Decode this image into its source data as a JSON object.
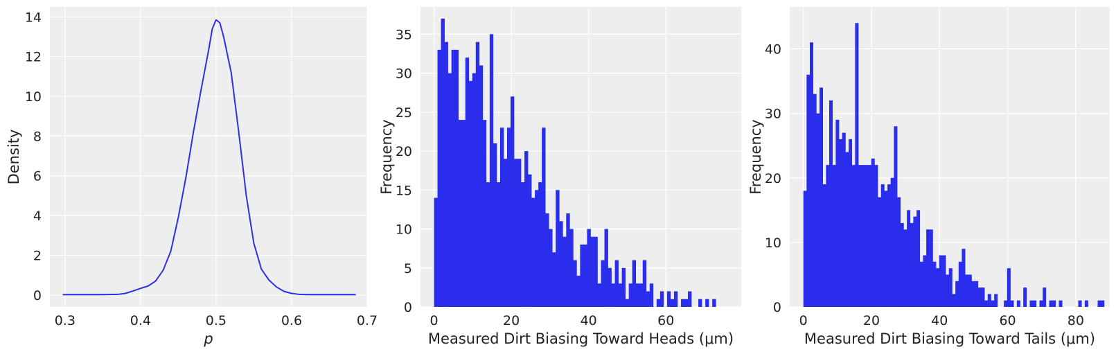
{
  "colors": {
    "plot_bg": "#eeeeee",
    "grid": "#ffffff",
    "series": "#2a2eec",
    "text": "#222222"
  },
  "chart_data": [
    {
      "type": "line",
      "xlabel": "p",
      "ylabel": "Density",
      "xlim": [
        0.28,
        0.7
      ],
      "ylim": [
        -0.6,
        14.5
      ],
      "xticks": [
        0.3,
        0.4,
        0.5,
        0.6,
        0.7
      ],
      "xtick_labels": [
        "0.3",
        "0.4",
        "0.5",
        "0.6",
        "0.7"
      ],
      "yticks": [
        0,
        2,
        4,
        6,
        8,
        10,
        12,
        14
      ],
      "ytick_labels": [
        "0",
        "2",
        "4",
        "6",
        "8",
        "10",
        "12",
        "14"
      ],
      "grid": true,
      "x": [
        0.297,
        0.32,
        0.35,
        0.37,
        0.38,
        0.39,
        0.4,
        0.41,
        0.42,
        0.43,
        0.44,
        0.45,
        0.46,
        0.47,
        0.48,
        0.49,
        0.495,
        0.5,
        0.505,
        0.51,
        0.52,
        0.53,
        0.54,
        0.55,
        0.56,
        0.57,
        0.58,
        0.59,
        0.6,
        0.61,
        0.62,
        0.65,
        0.685
      ],
      "y": [
        0.02,
        0.02,
        0.02,
        0.03,
        0.08,
        0.2,
        0.33,
        0.45,
        0.7,
        1.25,
        2.2,
        3.9,
        5.9,
        8.2,
        10.3,
        12.3,
        13.4,
        13.85,
        13.7,
        13.0,
        11.2,
        8.2,
        5.0,
        2.6,
        1.3,
        0.75,
        0.4,
        0.18,
        0.08,
        0.03,
        0.02,
        0.02,
        0.02
      ]
    },
    {
      "type": "bar",
      "xlabel": "Measured Dirt Biasing Toward Heads (μm)",
      "ylabel": "Frequency",
      "xlim": [
        -3.5,
        79.5
      ],
      "ylim": [
        0,
        38.5
      ],
      "xticks": [
        0,
        20,
        40,
        60
      ],
      "xtick_labels": [
        "0",
        "20",
        "40",
        "60"
      ],
      "yticks": [
        0,
        5,
        10,
        15,
        20,
        25,
        30,
        35
      ],
      "ytick_labels": [
        "0",
        "5",
        "10",
        "15",
        "20",
        "25",
        "30",
        "35"
      ],
      "grid": true,
      "bin_start": 0,
      "bin_width": 0.9,
      "values": [
        14,
        33,
        37,
        34,
        30,
        33,
        33,
        24,
        24,
        32,
        29,
        30,
        34,
        31,
        24,
        16,
        35,
        21,
        16,
        23,
        19,
        23,
        27,
        19,
        19,
        16,
        20,
        17,
        14,
        15,
        16,
        23,
        12,
        10,
        7,
        15,
        11,
        9,
        12,
        10,
        6,
        4,
        8,
        8,
        10,
        9,
        9,
        3,
        6,
        10,
        5,
        3,
        6,
        3,
        5,
        1,
        3,
        6,
        3,
        3,
        6,
        2,
        3,
        0,
        1,
        2,
        0,
        2,
        1,
        2,
        0,
        1,
        1,
        2,
        0,
        0,
        1,
        0,
        1,
        0,
        1
      ]
    },
    {
      "type": "bar",
      "xlabel": "Measured Dirt Biasing Toward Tails (μm)",
      "ylabel": "Frequency",
      "xlim": [
        -4,
        90
      ],
      "ylim": [
        0,
        46.5
      ],
      "xticks": [
        0,
        20,
        40,
        60,
        80
      ],
      "xtick_labels": [
        "0",
        "20",
        "40",
        "60",
        "80"
      ],
      "yticks": [
        0,
        10,
        20,
        30,
        40
      ],
      "ytick_labels": [
        "0",
        "10",
        "20",
        "30",
        "40"
      ],
      "grid": true,
      "bin_start": 0,
      "bin_width": 0.95,
      "values": [
        18,
        36,
        41,
        33,
        30,
        34,
        19,
        22,
        32,
        22,
        29,
        26,
        27,
        24,
        26,
        22,
        44,
        22,
        22,
        22,
        22,
        23,
        22,
        17,
        19,
        18,
        19,
        20,
        28,
        17,
        13,
        12,
        15,
        13,
        14,
        15,
        7,
        8,
        12,
        12,
        7,
        6,
        8,
        8,
        5,
        6,
        2,
        4,
        7,
        9,
        5,
        5,
        4,
        4,
        3,
        3,
        1,
        2,
        1,
        2,
        0,
        0,
        1,
        6,
        1,
        0,
        1,
        0,
        3,
        0,
        1,
        1,
        0,
        1,
        3,
        0,
        1,
        1,
        0,
        1,
        0,
        0,
        0,
        0,
        0,
        1,
        0,
        1,
        0,
        0,
        0,
        1,
        1
      ]
    }
  ]
}
